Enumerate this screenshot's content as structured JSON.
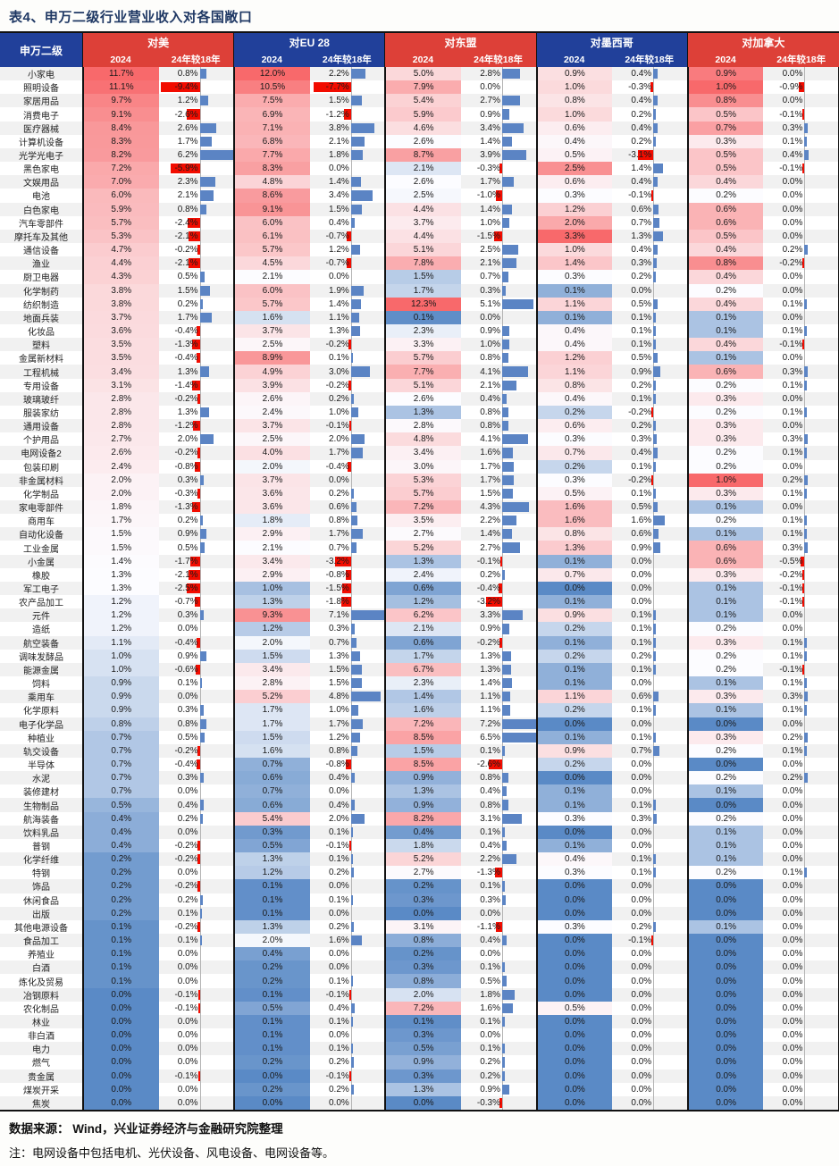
{
  "title": "表4、申万二级行业营业收入对各国敞口",
  "header": {
    "industry_col": "申万二级",
    "subcols": [
      "2024",
      "24年较18年"
    ],
    "groups": [
      {
        "label": "对美",
        "color": "red"
      },
      {
        "label": "对EU 28",
        "color": "blue"
      },
      {
        "label": "对东盟",
        "color": "red"
      },
      {
        "label": "对墨西哥",
        "color": "blue"
      },
      {
        "label": "对加拿大",
        "color": "red"
      }
    ]
  },
  "colors": {
    "header_red": "#dd4038",
    "header_blue": "#21409a",
    "title_navy": "#1f3864",
    "scale_low_blue": "#5a8ac6",
    "scale_mid_white": "#fcfcff",
    "scale_high_red": "#f8696b",
    "bar_positive_blue": "#5b84c4",
    "bar_negative_red": "#f20c00"
  },
  "footer": {
    "source": "数据来源：  Wind，兴业证券经济与金融研究院整理",
    "note": "注：电网设备中包括电机、光伏设备、风电设备、电网设备等。"
  },
  "chart_data": {
    "type": "heatmap",
    "unit": "%",
    "columns": [
      "对美 2024",
      "对美 24年较18年",
      "对EU28 2024",
      "对EU28 24年较18年",
      "对东盟 2024",
      "对东盟 24年较18年",
      "对墨西哥 2024",
      "对墨西哥 24年较18年",
      "对加拿大 2024",
      "对加拿大 24年较18年"
    ],
    "rows": [
      {
        "name": "小家电",
        "values": [
          11.7,
          0.8,
          12.0,
          2.2,
          5.0,
          2.8,
          0.9,
          0.4,
          0.9,
          0.0
        ]
      },
      {
        "name": "照明设备",
        "values": [
          11.1,
          -9.4,
          10.5,
          -7.7,
          7.9,
          0.0,
          1.0,
          -0.3,
          1.0,
          -0.9
        ]
      },
      {
        "name": "家居用品",
        "values": [
          9.7,
          1.2,
          7.5,
          1.5,
          5.4,
          2.7,
          0.8,
          0.4,
          0.8,
          0.0
        ]
      },
      {
        "name": "消费电子",
        "values": [
          9.1,
          -2.6,
          6.9,
          -1.2,
          5.9,
          0.9,
          1.0,
          0.2,
          0.5,
          -0.1
        ]
      },
      {
        "name": "医疗器械",
        "values": [
          8.4,
          2.6,
          7.1,
          3.8,
          4.6,
          3.4,
          0.6,
          0.4,
          0.7,
          0.3
        ]
      },
      {
        "name": "计算机设备",
        "values": [
          8.3,
          1.7,
          6.8,
          2.1,
          2.6,
          1.4,
          0.4,
          0.2,
          0.3,
          0.1
        ]
      },
      {
        "name": "光学光电子",
        "values": [
          8.2,
          6.2,
          7.7,
          1.8,
          8.7,
          3.9,
          0.5,
          -3.1,
          0.5,
          0.4
        ]
      },
      {
        "name": "黑色家电",
        "values": [
          7.2,
          -5.9,
          8.3,
          0.0,
          2.1,
          -0.3,
          2.5,
          1.4,
          0.5,
          -0.1
        ]
      },
      {
        "name": "文娱用品",
        "values": [
          7.0,
          2.3,
          4.8,
          1.4,
          2.6,
          1.7,
          0.6,
          0.4,
          0.4,
          0.0
        ]
      },
      {
        "name": "电池",
        "values": [
          6.0,
          2.1,
          8.6,
          3.4,
          2.5,
          -1.0,
          0.3,
          -0.1,
          0.2,
          0.0
        ]
      },
      {
        "name": "白色家电",
        "values": [
          5.9,
          0.8,
          9.1,
          1.5,
          4.4,
          1.4,
          1.2,
          0.6,
          0.6,
          0.0
        ]
      },
      {
        "name": "汽车零部件",
        "values": [
          5.7,
          -2.4,
          6.0,
          0.4,
          3.7,
          1.0,
          2.0,
          0.7,
          0.6,
          0.0
        ]
      },
      {
        "name": "摩托车及其他",
        "values": [
          5.3,
          -2.1,
          6.1,
          -0.7,
          4.4,
          -1.5,
          3.3,
          1.3,
          0.5,
          0.0
        ]
      },
      {
        "name": "通信设备",
        "values": [
          4.7,
          -0.2,
          5.7,
          1.2,
          5.1,
          2.5,
          1.0,
          0.4,
          0.4,
          0.2
        ]
      },
      {
        "name": "渔业",
        "values": [
          4.4,
          -2.1,
          4.5,
          -0.7,
          7.8,
          2.1,
          1.4,
          0.3,
          0.8,
          -0.2
        ]
      },
      {
        "name": "厨卫电器",
        "values": [
          4.3,
          0.5,
          2.1,
          0.0,
          1.5,
          0.7,
          0.3,
          0.2,
          0.4,
          0.0
        ]
      },
      {
        "name": "化学制药",
        "values": [
          3.8,
          1.5,
          6.0,
          1.9,
          1.7,
          0.3,
          0.1,
          0.0,
          0.2,
          0.0
        ]
      },
      {
        "name": "纺织制造",
        "values": [
          3.8,
          0.2,
          5.7,
          1.4,
          12.3,
          5.1,
          1.1,
          0.5,
          0.4,
          0.1
        ]
      },
      {
        "name": "地面兵装",
        "values": [
          3.7,
          1.7,
          1.6,
          1.1,
          0.1,
          0.0,
          0.1,
          0.1,
          0.1,
          0.0
        ]
      },
      {
        "name": "化妆品",
        "values": [
          3.6,
          -0.4,
          3.7,
          1.3,
          2.3,
          0.9,
          0.4,
          0.1,
          0.1,
          0.1
        ]
      },
      {
        "name": "塑料",
        "values": [
          3.5,
          -1.3,
          2.5,
          -0.2,
          3.3,
          1.0,
          0.4,
          0.1,
          0.4,
          -0.1
        ]
      },
      {
        "name": "金属新材料",
        "values": [
          3.5,
          -0.4,
          8.9,
          0.1,
          5.7,
          0.8,
          1.2,
          0.5,
          0.1,
          0.0
        ]
      },
      {
        "name": "工程机械",
        "values": [
          3.4,
          1.3,
          4.9,
          3.0,
          7.7,
          4.1,
          1.1,
          0.9,
          0.6,
          0.3
        ]
      },
      {
        "name": "专用设备",
        "values": [
          3.1,
          -1.4,
          3.9,
          -0.2,
          5.1,
          2.1,
          0.8,
          0.2,
          0.2,
          0.1
        ]
      },
      {
        "name": "玻璃玻纤",
        "values": [
          2.8,
          -0.2,
          2.6,
          0.2,
          2.6,
          0.4,
          0.4,
          0.1,
          0.3,
          0.0
        ]
      },
      {
        "name": "服装家纺",
        "values": [
          2.8,
          1.3,
          2.4,
          1.0,
          1.3,
          0.8,
          0.2,
          -0.2,
          0.2,
          0.1
        ]
      },
      {
        "name": "通用设备",
        "values": [
          2.8,
          -1.2,
          3.7,
          -0.1,
          2.8,
          0.8,
          0.6,
          0.2,
          0.3,
          0.0
        ]
      },
      {
        "name": "个护用品",
        "values": [
          2.7,
          2.0,
          2.5,
          2.0,
          4.8,
          4.1,
          0.3,
          0.3,
          0.3,
          0.3
        ]
      },
      {
        "name": "电网设备2",
        "values": [
          2.6,
          -0.2,
          4.0,
          1.7,
          3.4,
          1.6,
          0.7,
          0.4,
          0.2,
          0.1
        ]
      },
      {
        "name": "包装印刷",
        "values": [
          2.4,
          -0.8,
          2.0,
          -0.4,
          3.0,
          1.7,
          0.2,
          0.1,
          0.2,
          0.0
        ]
      },
      {
        "name": "非金属材料",
        "values": [
          2.0,
          0.3,
          3.7,
          0.0,
          5.3,
          1.7,
          0.3,
          -0.2,
          1.0,
          0.2
        ]
      },
      {
        "name": "化学制品",
        "values": [
          2.0,
          -0.3,
          3.6,
          0.2,
          5.7,
          1.5,
          0.5,
          0.1,
          0.3,
          0.1
        ]
      },
      {
        "name": "家电零部件",
        "values": [
          1.8,
          -1.3,
          3.6,
          0.6,
          7.2,
          4.3,
          1.6,
          0.5,
          0.1,
          0.0
        ]
      },
      {
        "name": "商用车",
        "values": [
          1.7,
          0.2,
          1.8,
          0.8,
          3.5,
          2.2,
          1.6,
          1.6,
          0.2,
          0.1
        ]
      },
      {
        "name": "自动化设备",
        "values": [
          1.5,
          0.9,
          2.9,
          1.7,
          2.7,
          1.4,
          0.8,
          0.6,
          0.1,
          0.1
        ]
      },
      {
        "name": "工业金属",
        "values": [
          1.5,
          0.5,
          2.1,
          0.7,
          5.2,
          2.7,
          1.3,
          0.9,
          0.6,
          0.3
        ]
      },
      {
        "name": "小金属",
        "values": [
          1.4,
          -1.7,
          3.4,
          -3.2,
          1.3,
          -0.1,
          0.1,
          0.0,
          0.6,
          -0.5
        ]
      },
      {
        "name": "橡胶",
        "values": [
          1.3,
          -2.1,
          2.9,
          -0.8,
          2.4,
          0.2,
          0.7,
          0.0,
          0.3,
          -0.2
        ]
      },
      {
        "name": "军工电子",
        "values": [
          1.3,
          -2.5,
          1.0,
          -1.5,
          0.6,
          -0.4,
          0.0,
          0.0,
          0.1,
          -0.1
        ]
      },
      {
        "name": "农产品加工",
        "values": [
          1.2,
          -0.7,
          1.3,
          -1.8,
          1.2,
          -3.2,
          0.1,
          0.0,
          0.1,
          -0.1
        ]
      },
      {
        "name": "元件",
        "values": [
          1.2,
          0.3,
          9.3,
          7.1,
          6.2,
          3.3,
          0.9,
          0.1,
          0.1,
          0.0
        ]
      },
      {
        "name": "造纸",
        "values": [
          1.2,
          0.0,
          1.2,
          0.3,
          2.1,
          0.9,
          0.2,
          0.1,
          0.2,
          0.0
        ]
      },
      {
        "name": "航空装备",
        "values": [
          1.1,
          -0.4,
          2.0,
          0.7,
          0.6,
          -0.2,
          0.1,
          0.1,
          0.3,
          0.1
        ]
      },
      {
        "name": "调味发酵品",
        "values": [
          1.0,
          0.9,
          1.5,
          1.3,
          1.7,
          1.3,
          0.2,
          0.2,
          0.2,
          0.1
        ]
      },
      {
        "name": "能源金属",
        "values": [
          1.0,
          -0.6,
          3.4,
          1.5,
          6.7,
          1.3,
          0.1,
          0.1,
          0.2,
          -0.1
        ]
      },
      {
        "name": "饲料",
        "values": [
          0.9,
          0.1,
          2.8,
          1.5,
          2.3,
          1.4,
          0.1,
          0.0,
          0.1,
          0.1
        ]
      },
      {
        "name": "乘用车",
        "values": [
          0.9,
          0.0,
          5.2,
          4.8,
          1.4,
          1.1,
          1.1,
          0.6,
          0.3,
          0.3
        ]
      },
      {
        "name": "化学原料",
        "values": [
          0.9,
          0.3,
          1.7,
          1.0,
          1.6,
          1.1,
          0.2,
          0.1,
          0.1,
          0.1
        ]
      },
      {
        "name": "电子化学品",
        "values": [
          0.8,
          0.8,
          1.7,
          1.7,
          7.2,
          7.2,
          0.0,
          0.0,
          0.0,
          0.0
        ]
      },
      {
        "name": "种植业",
        "values": [
          0.7,
          0.5,
          1.5,
          1.2,
          8.5,
          6.5,
          0.1,
          0.1,
          0.3,
          0.2
        ]
      },
      {
        "name": "轨交设备",
        "values": [
          0.7,
          -0.2,
          1.6,
          0.8,
          1.5,
          0.1,
          0.9,
          0.7,
          0.2,
          0.1
        ]
      },
      {
        "name": "半导体",
        "values": [
          0.7,
          -0.4,
          0.7,
          -0.8,
          8.5,
          -2.6,
          0.2,
          0.0,
          0.0,
          0.0
        ]
      },
      {
        "name": "水泥",
        "values": [
          0.7,
          0.3,
          0.6,
          0.4,
          0.9,
          0.8,
          0.0,
          0.0,
          0.2,
          0.2
        ]
      },
      {
        "name": "装修建材",
        "values": [
          0.7,
          0.0,
          0.7,
          0.0,
          1.3,
          0.4,
          0.1,
          0.0,
          0.1,
          0.0
        ]
      },
      {
        "name": "生物制品",
        "values": [
          0.5,
          0.4,
          0.6,
          0.4,
          0.9,
          0.8,
          0.1,
          0.1,
          0.0,
          0.0
        ]
      },
      {
        "name": "航海装备",
        "values": [
          0.4,
          0.2,
          5.4,
          2.0,
          8.2,
          3.1,
          0.3,
          0.3,
          0.2,
          0.0
        ]
      },
      {
        "name": "饮料乳品",
        "values": [
          0.4,
          0.0,
          0.3,
          0.1,
          0.4,
          0.1,
          0.0,
          0.0,
          0.1,
          0.0
        ]
      },
      {
        "name": "普钢",
        "values": [
          0.4,
          -0.2,
          0.5,
          -0.1,
          1.8,
          0.4,
          0.1,
          0.0,
          0.1,
          0.0
        ]
      },
      {
        "name": "化学纤维",
        "values": [
          0.2,
          -0.2,
          1.3,
          0.1,
          5.2,
          2.2,
          0.4,
          0.1,
          0.1,
          0.0
        ]
      },
      {
        "name": "特钢",
        "values": [
          0.2,
          0.0,
          1.2,
          0.2,
          2.7,
          -1.3,
          0.3,
          0.1,
          0.2,
          0.1
        ]
      },
      {
        "name": "饰品",
        "values": [
          0.2,
          -0.2,
          0.1,
          0.0,
          0.2,
          0.1,
          0.0,
          0.0,
          0.0,
          0.0
        ]
      },
      {
        "name": "休闲食品",
        "values": [
          0.2,
          0.2,
          0.1,
          0.1,
          0.3,
          0.3,
          0.0,
          0.0,
          0.0,
          0.0
        ]
      },
      {
        "name": "出版",
        "values": [
          0.2,
          0.1,
          0.1,
          0.0,
          0.0,
          0.0,
          0.0,
          0.0,
          0.0,
          0.0
        ]
      },
      {
        "name": "其他电源设备",
        "values": [
          0.1,
          -0.2,
          1.3,
          0.2,
          3.1,
          -1.1,
          0.3,
          0.2,
          0.1,
          0.0
        ]
      },
      {
        "name": "食品加工",
        "values": [
          0.1,
          0.1,
          2.0,
          1.6,
          0.8,
          0.4,
          0.0,
          -0.1,
          0.0,
          0.0
        ]
      },
      {
        "name": "养殖业",
        "values": [
          0.1,
          0.0,
          0.4,
          0.0,
          0.2,
          0.0,
          0.0,
          0.0,
          0.0,
          0.0
        ]
      },
      {
        "name": "白酒",
        "values": [
          0.1,
          0.0,
          0.2,
          0.0,
          0.3,
          0.1,
          0.0,
          0.0,
          0.0,
          0.0
        ]
      },
      {
        "name": "炼化及贸易",
        "values": [
          0.1,
          0.0,
          0.2,
          0.1,
          0.8,
          0.5,
          0.0,
          0.0,
          0.0,
          0.0
        ]
      },
      {
        "name": "冶钢原料",
        "values": [
          0.0,
          -0.1,
          0.1,
          -0.1,
          2.0,
          1.8,
          0.0,
          0.0,
          0.0,
          0.0
        ]
      },
      {
        "name": "农化制品",
        "values": [
          0.0,
          -0.1,
          0.5,
          0.4,
          7.2,
          1.6,
          0.5,
          0.0,
          0.0,
          0.0
        ]
      },
      {
        "name": "林业",
        "values": [
          0.0,
          0.0,
          0.1,
          0.1,
          0.1,
          0.1,
          0.0,
          0.0,
          0.0,
          0.0
        ]
      },
      {
        "name": "非白酒",
        "values": [
          0.0,
          0.0,
          0.1,
          0.0,
          0.3,
          0.0,
          0.0,
          0.0,
          0.0,
          0.0
        ]
      },
      {
        "name": "电力",
        "values": [
          0.0,
          0.0,
          0.1,
          0.1,
          0.5,
          0.1,
          0.0,
          0.0,
          0.0,
          0.0
        ]
      },
      {
        "name": "燃气",
        "values": [
          0.0,
          0.0,
          0.2,
          0.2,
          0.9,
          0.2,
          0.0,
          0.0,
          0.0,
          0.0
        ]
      },
      {
        "name": "贵金属",
        "values": [
          0.0,
          -0.1,
          0.0,
          -0.1,
          0.3,
          0.2,
          0.0,
          0.0,
          0.0,
          0.0
        ]
      },
      {
        "name": "煤炭开采",
        "values": [
          0.0,
          0.0,
          0.2,
          0.2,
          1.3,
          0.9,
          0.0,
          0.0,
          0.0,
          0.0
        ]
      },
      {
        "name": "焦炭",
        "values": [
          0.0,
          0.0,
          0.0,
          0.0,
          0.0,
          -0.3,
          0.0,
          0.0,
          0.0,
          0.0
        ]
      }
    ]
  }
}
